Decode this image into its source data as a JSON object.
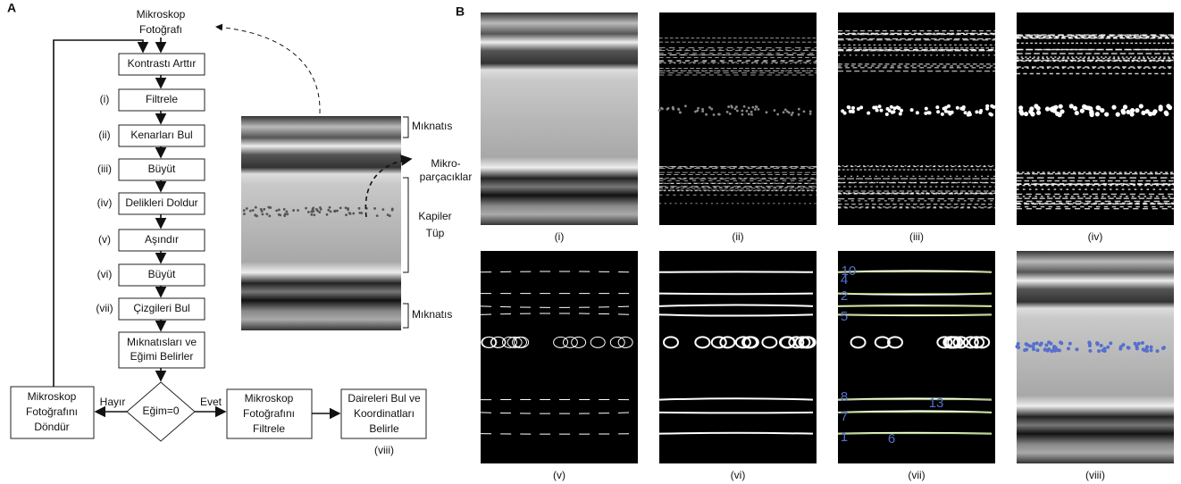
{
  "panel_a": {
    "label": "A",
    "source": [
      "Mikroskop",
      "Fotoğrafı"
    ],
    "steps": [
      {
        "text": "Kontrastı Arttır"
      },
      {
        "num": "(i)",
        "text": "Filtrele"
      },
      {
        "num": "(ii)",
        "text": "Kenarları Bul"
      },
      {
        "num": "(iii)",
        "text": "Büyüt"
      },
      {
        "num": "(iv)",
        "text": "Delikleri Doldur"
      },
      {
        "num": "(v)",
        "text": "Aşındır"
      },
      {
        "num": "(vi)",
        "text": "Büyüt"
      },
      {
        "num": "(vii)",
        "text": "Çizgileri Bul"
      }
    ],
    "process": [
      "Mıknatısları ve",
      "Eğimi Belirler"
    ],
    "decision": "Eğim=0",
    "no": "Hayır",
    "yes": "Evet",
    "rotate": [
      "Mikroskop",
      "Fotoğrafını",
      "Döndür"
    ],
    "filter": [
      "Mikroskop",
      "Fotoğrafını",
      "Filtrele"
    ],
    "find": [
      "Daireleri Bul ve",
      "Koordinatları",
      "Belirle"
    ],
    "find_num": "(viii)",
    "image_labels": {
      "magnet_top": "Mıknatıs",
      "particles": [
        "Mikro-",
        "parçacıklar"
      ],
      "tube": [
        "Kapiler",
        "Tüp"
      ],
      "magnet_bottom": "Mıknatıs"
    }
  },
  "panel_b": {
    "label": "B",
    "panels": [
      {
        "caption": "(i)"
      },
      {
        "caption": "(ii)"
      },
      {
        "caption": "(iii)"
      },
      {
        "caption": "(iv)"
      },
      {
        "caption": "(v)"
      },
      {
        "caption": "(vi)"
      },
      {
        "caption": "(vii)"
      },
      {
        "caption": "(viii)"
      }
    ],
    "line_numbers": [
      "10",
      "4",
      "2",
      "5",
      "8",
      "13",
      "7",
      "1",
      "6"
    ]
  }
}
